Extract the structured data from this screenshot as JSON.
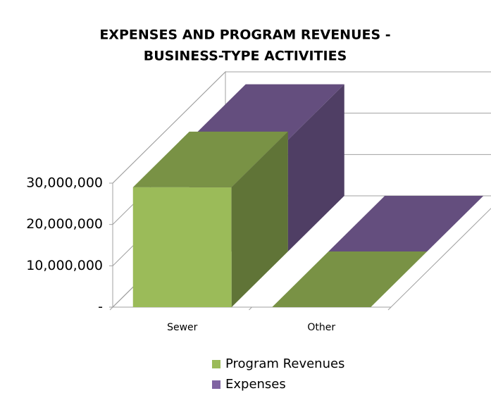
{
  "chart_data": {
    "type": "bar3d",
    "title": [
      "EXPENSES AND PROGRAM REVENUES -",
      "BUSINESS-TYPE ACTIVITIES"
    ],
    "categories": [
      "Sewer",
      "Other"
    ],
    "series": [
      {
        "name": "Program Revenues",
        "color": "#9bbb59",
        "values": [
          29000000,
          0
        ]
      },
      {
        "name": "Expenses",
        "color": "#8064a2",
        "values": [
          27000000,
          0
        ]
      }
    ],
    "ylim": [
      0,
      30000000
    ],
    "yticks": [
      {
        "value": 0,
        "label": "-"
      },
      {
        "value": 10000000,
        "label": "10,000,000"
      },
      {
        "value": 20000000,
        "label": "20,000,000"
      },
      {
        "value": 30000000,
        "label": "30,000,000"
      }
    ],
    "grid": true,
    "legend": "bottom"
  }
}
